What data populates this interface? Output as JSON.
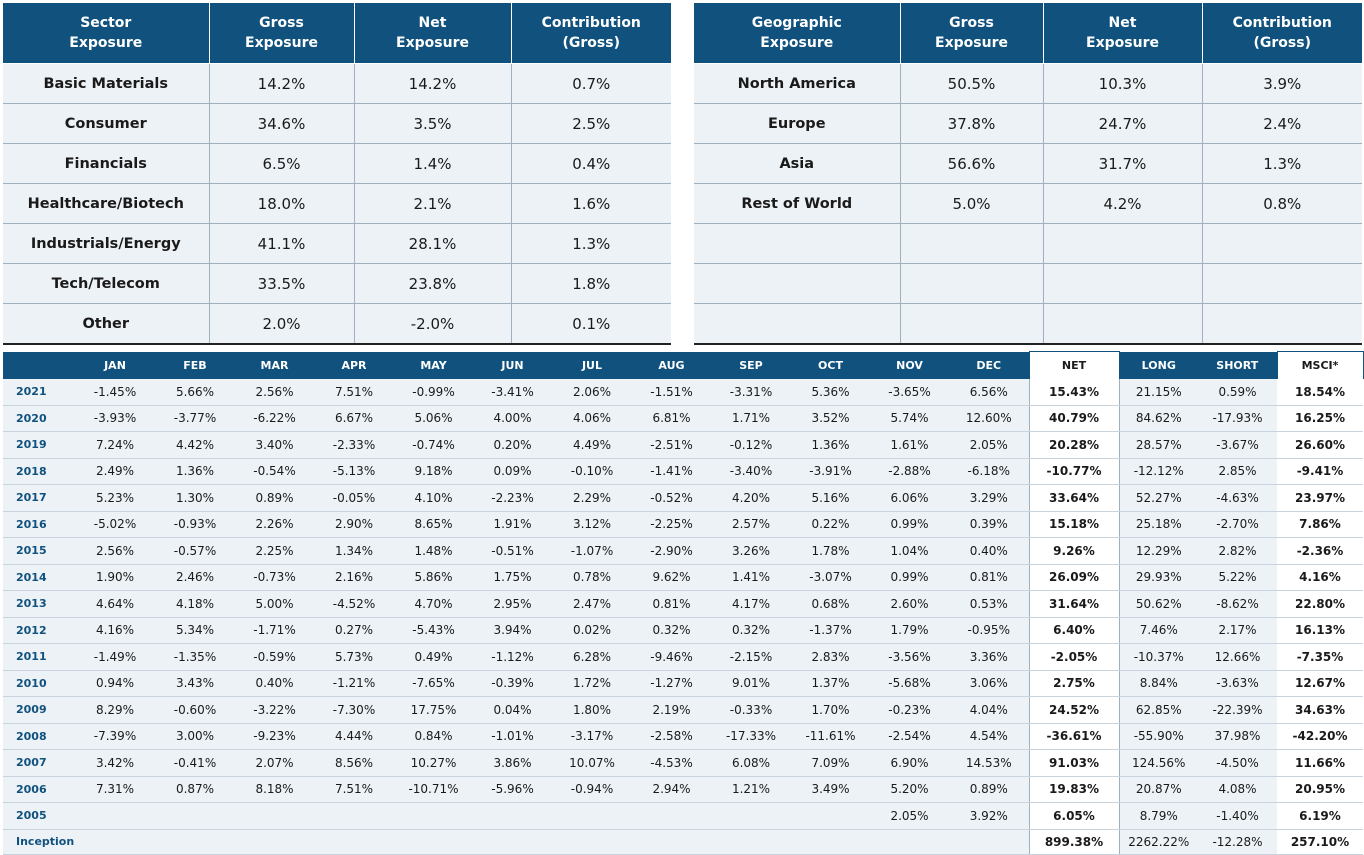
{
  "sector_table": {
    "headers": [
      "Sector\nExposure",
      "Gross\nExposure",
      "Net\nExposure",
      "Contribution\n(Gross)"
    ],
    "rows": [
      {
        "label": "Basic Materials",
        "gross": "14.2%",
        "net": "14.2%",
        "contribution": "0.7%"
      },
      {
        "label": "Consumer",
        "gross": "34.6%",
        "net": "3.5%",
        "contribution": "2.5%"
      },
      {
        "label": "Financials",
        "gross": "6.5%",
        "net": "1.4%",
        "contribution": "0.4%"
      },
      {
        "label": "Healthcare/Biotech",
        "gross": "18.0%",
        "net": "2.1%",
        "contribution": "1.6%"
      },
      {
        "label": "Industrials/Energy",
        "gross": "41.1%",
        "net": "28.1%",
        "contribution": "1.3%"
      },
      {
        "label": "Tech/Telecom",
        "gross": "33.5%",
        "net": "23.8%",
        "contribution": "1.8%"
      },
      {
        "label": "Other",
        "gross": "2.0%",
        "net": "-2.0%",
        "contribution": "0.1%"
      }
    ]
  },
  "geo_table": {
    "headers": [
      "Geographic\nExposure",
      "Gross\nExposure",
      "Net\nExposure",
      "Contribution\n(Gross)"
    ],
    "rows": [
      {
        "label": "North America",
        "gross": "50.5%",
        "net": "10.3%",
        "contribution": "3.9%"
      },
      {
        "label": "Europe",
        "gross": "37.8%",
        "net": "24.7%",
        "contribution": "2.4%"
      },
      {
        "label": "Asia",
        "gross": "56.6%",
        "net": "31.7%",
        "contribution": "1.3%"
      },
      {
        "label": "Rest of World",
        "gross": "5.0%",
        "net": "4.2%",
        "contribution": "0.8%"
      },
      {
        "label": "",
        "gross": "",
        "net": "",
        "contribution": ""
      },
      {
        "label": "",
        "gross": "",
        "net": "",
        "contribution": ""
      },
      {
        "label": "",
        "gross": "",
        "net": "",
        "contribution": ""
      }
    ]
  },
  "returns_table": {
    "headers": [
      "",
      "JAN",
      "FEB",
      "MAR",
      "APR",
      "MAY",
      "JUN",
      "JUL",
      "AUG",
      "SEP",
      "OCT",
      "NOV",
      "DEC",
      "NET",
      "LONG",
      "SHORT",
      "MSCI*"
    ],
    "rows": [
      {
        "year": "2021",
        "months": [
          "-1.45%",
          "5.66%",
          "2.56%",
          "7.51%",
          "-0.99%",
          "-3.41%",
          "2.06%",
          "-1.51%",
          "-3.31%",
          "5.36%",
          "-3.65%",
          "6.56%"
        ],
        "net": "15.43%",
        "long": "21.15%",
        "short": "0.59%",
        "msci": "18.54%"
      },
      {
        "year": "2020",
        "months": [
          "-3.93%",
          "-3.77%",
          "-6.22%",
          "6.67%",
          "5.06%",
          "4.00%",
          "4.06%",
          "6.81%",
          "1.71%",
          "3.52%",
          "5.74%",
          "12.60%"
        ],
        "net": "40.79%",
        "long": "84.62%",
        "short": "-17.93%",
        "msci": "16.25%"
      },
      {
        "year": "2019",
        "months": [
          "7.24%",
          "4.42%",
          "3.40%",
          "-2.33%",
          "-0.74%",
          "0.20%",
          "4.49%",
          "-2.51%",
          "-0.12%",
          "1.36%",
          "1.61%",
          "2.05%"
        ],
        "net": "20.28%",
        "long": "28.57%",
        "short": "-3.67%",
        "msci": "26.60%"
      },
      {
        "year": "2018",
        "months": [
          "2.49%",
          "1.36%",
          "-0.54%",
          "-5.13%",
          "9.18%",
          "0.09%",
          "-0.10%",
          "-1.41%",
          "-3.40%",
          "-3.91%",
          "-2.88%",
          "-6.18%"
        ],
        "net": "-10.77%",
        "long": "-12.12%",
        "short": "2.85%",
        "msci": "-9.41%"
      },
      {
        "year": "2017",
        "months": [
          "5.23%",
          "1.30%",
          "0.89%",
          "-0.05%",
          "4.10%",
          "-2.23%",
          "2.29%",
          "-0.52%",
          "4.20%",
          "5.16%",
          "6.06%",
          "3.29%"
        ],
        "net": "33.64%",
        "long": "52.27%",
        "short": "-4.63%",
        "msci": "23.97%"
      },
      {
        "year": "2016",
        "months": [
          "-5.02%",
          "-0.93%",
          "2.26%",
          "2.90%",
          "8.65%",
          "1.91%",
          "3.12%",
          "-2.25%",
          "2.57%",
          "0.22%",
          "0.99%",
          "0.39%"
        ],
        "net": "15.18%",
        "long": "25.18%",
        "short": "-2.70%",
        "msci": "7.86%"
      },
      {
        "year": "2015",
        "months": [
          "2.56%",
          "-0.57%",
          "2.25%",
          "1.34%",
          "1.48%",
          "-0.51%",
          "-1.07%",
          "-2.90%",
          "3.26%",
          "1.78%",
          "1.04%",
          "0.40%"
        ],
        "net": "9.26%",
        "long": "12.29%",
        "short": "2.82%",
        "msci": "-2.36%"
      },
      {
        "year": "2014",
        "months": [
          "1.90%",
          "2.46%",
          "-0.73%",
          "2.16%",
          "5.86%",
          "1.75%",
          "0.78%",
          "9.62%",
          "1.41%",
          "-3.07%",
          "0.99%",
          "0.81%"
        ],
        "net": "26.09%",
        "long": "29.93%",
        "short": "5.22%",
        "msci": "4.16%"
      },
      {
        "year": "2013",
        "months": [
          "4.64%",
          "4.18%",
          "5.00%",
          "-4.52%",
          "4.70%",
          "2.95%",
          "2.47%",
          "0.81%",
          "4.17%",
          "0.68%",
          "2.60%",
          "0.53%"
        ],
        "net": "31.64%",
        "long": "50.62%",
        "short": "-8.62%",
        "msci": "22.80%"
      },
      {
        "year": "2012",
        "months": [
          "4.16%",
          "5.34%",
          "-1.71%",
          "0.27%",
          "-5.43%",
          "3.94%",
          "0.02%",
          "0.32%",
          "0.32%",
          "-1.37%",
          "1.79%",
          "-0.95%"
        ],
        "net": "6.40%",
        "long": "7.46%",
        "short": "2.17%",
        "msci": "16.13%"
      },
      {
        "year": "2011",
        "months": [
          "-1.49%",
          "-1.35%",
          "-0.59%",
          "5.73%",
          "0.49%",
          "-1.12%",
          "6.28%",
          "-9.46%",
          "-2.15%",
          "2.83%",
          "-3.56%",
          "3.36%"
        ],
        "net": "-2.05%",
        "long": "-10.37%",
        "short": "12.66%",
        "msci": "-7.35%"
      },
      {
        "year": "2010",
        "months": [
          "0.94%",
          "3.43%",
          "0.40%",
          "-1.21%",
          "-7.65%",
          "-0.39%",
          "1.72%",
          "-1.27%",
          "9.01%",
          "1.37%",
          "-5.68%",
          "3.06%"
        ],
        "net": "2.75%",
        "long": "8.84%",
        "short": "-3.63%",
        "msci": "12.67%"
      },
      {
        "year": "2009",
        "months": [
          "8.29%",
          "-0.60%",
          "-3.22%",
          "-7.30%",
          "17.75%",
          "0.04%",
          "1.80%",
          "2.19%",
          "-0.33%",
          "1.70%",
          "-0.23%",
          "4.04%"
        ],
        "net": "24.52%",
        "long": "62.85%",
        "short": "-22.39%",
        "msci": "34.63%"
      },
      {
        "year": "2008",
        "months": [
          "-7.39%",
          "3.00%",
          "-9.23%",
          "4.44%",
          "0.84%",
          "-1.01%",
          "-3.17%",
          "-2.58%",
          "-17.33%",
          "-11.61%",
          "-2.54%",
          "4.54%"
        ],
        "net": "-36.61%",
        "long": "-55.90%",
        "short": "37.98%",
        "msci": "-42.20%"
      },
      {
        "year": "2007",
        "months": [
          "3.42%",
          "-0.41%",
          "2.07%",
          "8.56%",
          "10.27%",
          "3.86%",
          "10.07%",
          "-4.53%",
          "6.08%",
          "7.09%",
          "6.90%",
          "14.53%"
        ],
        "net": "91.03%",
        "long": "124.56%",
        "short": "-4.50%",
        "msci": "11.66%"
      },
      {
        "year": "2006",
        "months": [
          "7.31%",
          "0.87%",
          "8.18%",
          "7.51%",
          "-10.71%",
          "-5.96%",
          "-0.94%",
          "2.94%",
          "1.21%",
          "3.49%",
          "5.20%",
          "0.89%"
        ],
        "net": "19.83%",
        "long": "20.87%",
        "short": "4.08%",
        "msci": "20.95%"
      },
      {
        "year": "2005",
        "months": [
          "",
          "",
          "",
          "",
          "",
          "",
          "",
          "",
          "",
          "",
          "2.05%",
          "3.92%"
        ],
        "net": "6.05%",
        "long": "8.79%",
        "short": "-1.40%",
        "msci": "6.19%"
      },
      {
        "year": "Inception",
        "months": [
          "",
          "",
          "",
          "",
          "",
          "",
          "",
          "",
          "",
          "",
          "",
          ""
        ],
        "net": "899.38%",
        "long": "2262.22%",
        "short": "-12.28%",
        "msci": "257.10%"
      }
    ]
  }
}
